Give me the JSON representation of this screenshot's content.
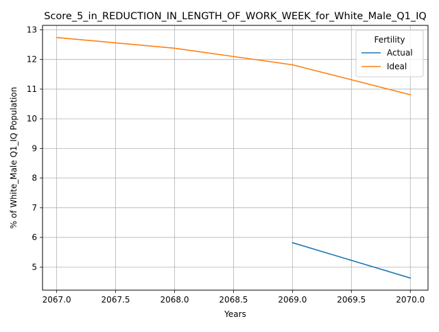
{
  "chart_data": {
    "type": "line",
    "title": "Score_5_in_REDUCTION_IN_LENGTH_OF_WORK_WEEK_for_White_Male_Q1_IQ",
    "xlabel": "Years",
    "ylabel": "% of White_Male Q1_IQ Population",
    "xlim": [
      2066.88,
      2070.15
    ],
    "ylim": [
      4.22,
      13.15
    ],
    "x_ticks": [
      "2067.0",
      "2067.5",
      "2068.0",
      "2068.5",
      "2069.0",
      "2069.5",
      "2070.0"
    ],
    "y_ticks": [
      "5",
      "6",
      "7",
      "8",
      "9",
      "10",
      "11",
      "12",
      "13"
    ],
    "grid": true,
    "legend": {
      "title": "Fertility",
      "placement": "top-right"
    },
    "series": [
      {
        "name": "Actual",
        "color": "#1f77b4",
        "points": [
          [
            2069.0,
            5.82
          ],
          [
            2070.0,
            4.63
          ]
        ]
      },
      {
        "name": "Ideal",
        "color": "#ff7f0e",
        "points": [
          [
            2067.0,
            12.74
          ],
          [
            2068.0,
            12.38
          ],
          [
            2069.0,
            11.82
          ],
          [
            2070.0,
            10.81
          ]
        ]
      }
    ]
  }
}
